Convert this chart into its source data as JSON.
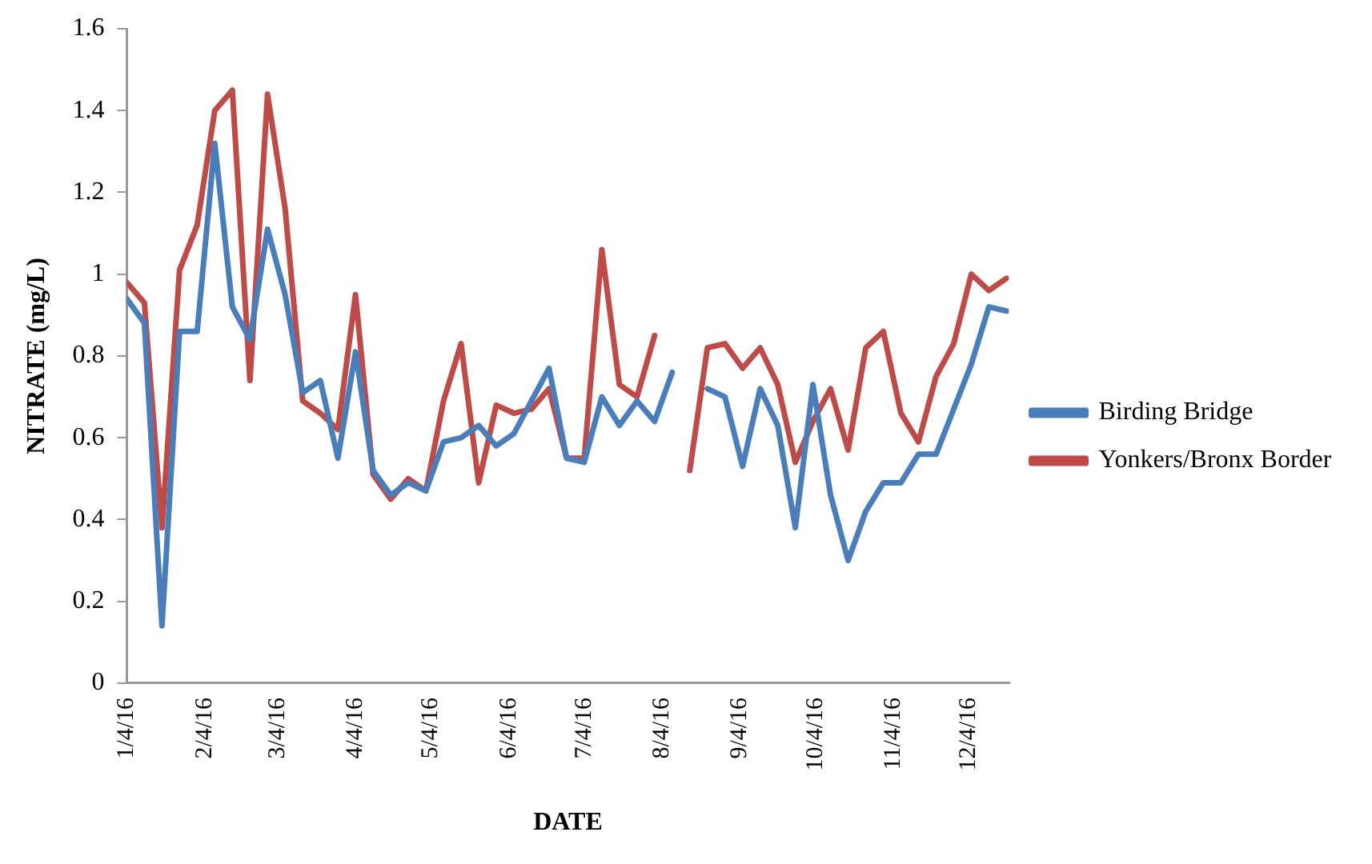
{
  "chart_data": {
    "type": "line",
    "xlabel": "DATE",
    "ylabel": "NITRATE (mg/L)",
    "x": [
      "2016-01-04",
      "2016-01-11",
      "2016-01-18",
      "2016-01-25",
      "2016-02-01",
      "2016-02-08",
      "2016-02-15",
      "2016-02-22",
      "2016-02-29",
      "2016-03-07",
      "2016-03-14",
      "2016-03-21",
      "2016-03-28",
      "2016-04-04",
      "2016-04-11",
      "2016-04-18",
      "2016-04-25",
      "2016-05-02",
      "2016-05-09",
      "2016-05-16",
      "2016-05-23",
      "2016-05-30",
      "2016-06-06",
      "2016-06-13",
      "2016-06-20",
      "2016-06-27",
      "2016-07-04",
      "2016-07-11",
      "2016-07-18",
      "2016-07-25",
      "2016-08-01",
      "2016-08-08",
      "2016-08-15",
      "2016-08-22",
      "2016-08-29",
      "2016-09-05",
      "2016-09-12",
      "2016-09-19",
      "2016-09-26",
      "2016-10-03",
      "2016-10-10",
      "2016-10-17",
      "2016-10-24",
      "2016-10-31",
      "2016-11-07",
      "2016-11-14",
      "2016-11-21",
      "2016-11-28",
      "2016-12-05",
      "2016-12-12",
      "2016-12-19"
    ],
    "series": [
      {
        "name": "Birding Bridge",
        "color": "#4a7ebb",
        "values": [
          0.94,
          0.88,
          0.14,
          0.86,
          0.86,
          1.32,
          0.92,
          0.84,
          1.11,
          0.95,
          0.71,
          0.74,
          0.55,
          0.81,
          0.52,
          0.46,
          0.49,
          0.47,
          0.59,
          0.6,
          0.63,
          0.58,
          0.61,
          0.69,
          0.77,
          0.55,
          0.54,
          0.7,
          0.63,
          0.69,
          0.64,
          0.76,
          null,
          0.72,
          0.7,
          0.53,
          0.72,
          0.63,
          0.38,
          0.73,
          0.46,
          0.3,
          0.42,
          0.49,
          0.49,
          0.56,
          0.56,
          0.67,
          0.78,
          0.92,
          0.91
        ]
      },
      {
        "name": "Yonkers/Bronx Border",
        "color": "#be4b48",
        "values": [
          0.98,
          0.93,
          0.38,
          1.01,
          1.12,
          1.4,
          1.45,
          0.74,
          1.44,
          1.16,
          0.69,
          0.66,
          0.62,
          0.95,
          0.51,
          0.45,
          0.5,
          0.47,
          0.69,
          0.83,
          0.49,
          0.68,
          0.66,
          0.67,
          0.72,
          0.55,
          0.55,
          1.06,
          0.73,
          0.7,
          0.85,
          null,
          0.52,
          0.82,
          0.83,
          0.77,
          0.82,
          0.73,
          0.54,
          0.64,
          0.72,
          0.57,
          0.82,
          0.86,
          0.66,
          0.59,
          0.75,
          0.83,
          1.0,
          0.96,
          0.99
        ]
      }
    ],
    "xlim": [
      "2016-01-04",
      "2016-12-20"
    ],
    "xticks": [
      {
        "value": "2016-01-04",
        "label": "1/4/16"
      },
      {
        "value": "2016-02-04",
        "label": "2/4/16"
      },
      {
        "value": "2016-03-04",
        "label": "3/4/16"
      },
      {
        "value": "2016-04-04",
        "label": "4/4/16"
      },
      {
        "value": "2016-05-04",
        "label": "5/4/16"
      },
      {
        "value": "2016-06-04",
        "label": "6/4/16"
      },
      {
        "value": "2016-07-04",
        "label": "7/4/16"
      },
      {
        "value": "2016-08-04",
        "label": "8/4/16"
      },
      {
        "value": "2016-09-04",
        "label": "9/4/16"
      },
      {
        "value": "2016-10-04",
        "label": "10/4/16"
      },
      {
        "value": "2016-11-04",
        "label": "11/4/16"
      },
      {
        "value": "2016-12-04",
        "label": "12/4/16"
      }
    ],
    "ylim": [
      0,
      1.6
    ],
    "yticks": [
      0,
      0.2,
      0.4,
      0.6,
      0.8,
      1,
      1.2,
      1.4,
      1.6
    ],
    "grid": false,
    "legend": "right",
    "marker": "none",
    "line_style": "solid"
  }
}
